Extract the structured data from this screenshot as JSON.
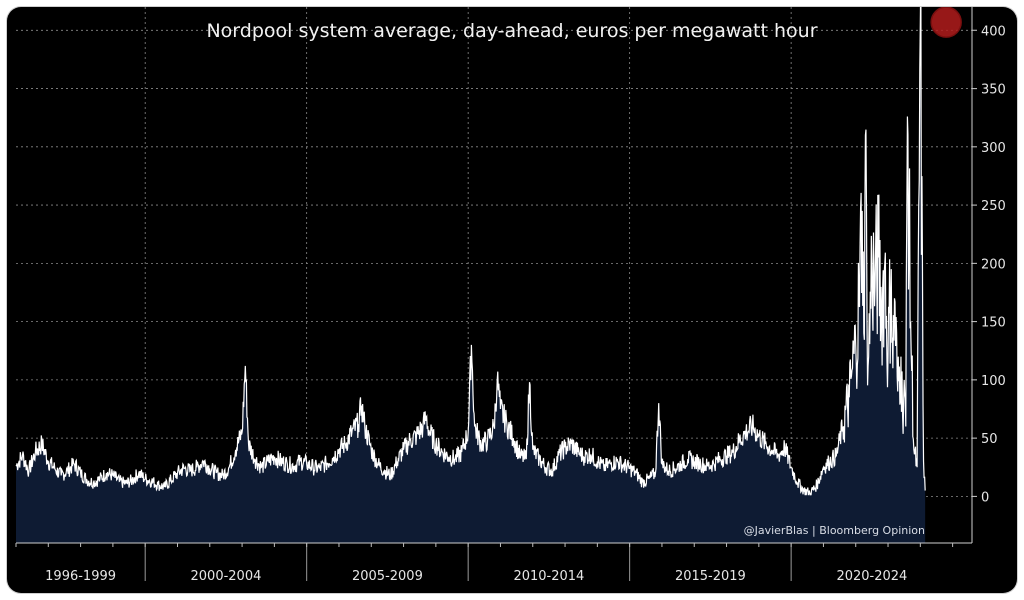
{
  "chart_data": {
    "type": "area",
    "title": "Nordpool system average, day-ahead, euros per megawatt hour",
    "ylabel": "",
    "xlabel": "",
    "ylim": [
      -40,
      420
    ],
    "xlim": [
      1996.0,
      2025.6
    ],
    "yticks": [
      0,
      50,
      100,
      150,
      200,
      250,
      300,
      350,
      400
    ],
    "xcategories": [
      {
        "label": "1996-1999",
        "start": 1996.0,
        "end": 2000.0
      },
      {
        "label": "2000-2004",
        "start": 2000.0,
        "end": 2005.0
      },
      {
        "label": "2005-2009",
        "start": 2005.0,
        "end": 2010.0
      },
      {
        "label": "2010-2014",
        "start": 2010.0,
        "end": 2015.0
      },
      {
        "label": "2015-2019",
        "start": 2015.0,
        "end": 2020.0
      },
      {
        "label": "2020-2024",
        "start": 2020.0,
        "end": 2025.0
      }
    ],
    "credit": "@JavierBlas | Bloomberg Opinion",
    "highlight": {
      "x": 2024.8,
      "y": 407,
      "color": "#b21c1c"
    },
    "colors": {
      "area": "#0e1b33",
      "line": "#ffffff",
      "grid": "#8a8a8a"
    },
    "series": [
      {
        "name": "Nordpool system average",
        "points": [
          [
            1996.0,
            26
          ],
          [
            1996.2,
            35
          ],
          [
            1996.4,
            22
          ],
          [
            1996.6,
            38
          ],
          [
            1996.8,
            45
          ],
          [
            1997.0,
            30
          ],
          [
            1997.2,
            24
          ],
          [
            1997.4,
            18
          ],
          [
            1997.6,
            22
          ],
          [
            1997.8,
            28
          ],
          [
            1998.0,
            20
          ],
          [
            1998.2,
            14
          ],
          [
            1998.4,
            12
          ],
          [
            1998.6,
            15
          ],
          [
            1998.8,
            20
          ],
          [
            1999.0,
            18
          ],
          [
            1999.2,
            13
          ],
          [
            1999.4,
            11
          ],
          [
            1999.6,
            14
          ],
          [
            1999.8,
            20
          ],
          [
            2000.0,
            15
          ],
          [
            2000.2,
            13
          ],
          [
            2000.4,
            10
          ],
          [
            2000.6,
            8
          ],
          [
            2000.8,
            14
          ],
          [
            2001.0,
            20
          ],
          [
            2001.2,
            24
          ],
          [
            2001.4,
            22
          ],
          [
            2001.6,
            25
          ],
          [
            2001.8,
            30
          ],
          [
            2002.0,
            24
          ],
          [
            2002.2,
            20
          ],
          [
            2002.4,
            18
          ],
          [
            2002.6,
            25
          ],
          [
            2002.8,
            40
          ],
          [
            2003.0,
            55
          ],
          [
            2003.1,
            112
          ],
          [
            2003.2,
            45
          ],
          [
            2003.4,
            32
          ],
          [
            2003.6,
            25
          ],
          [
            2003.8,
            30
          ],
          [
            2004.0,
            34
          ],
          [
            2004.2,
            30
          ],
          [
            2004.4,
            28
          ],
          [
            2004.6,
            26
          ],
          [
            2004.8,
            30
          ],
          [
            2005.0,
            28
          ],
          [
            2005.2,
            25
          ],
          [
            2005.4,
            24
          ],
          [
            2005.6,
            28
          ],
          [
            2005.8,
            33
          ],
          [
            2006.0,
            40
          ],
          [
            2006.2,
            45
          ],
          [
            2006.4,
            55
          ],
          [
            2006.6,
            62
          ],
          [
            2006.7,
            78
          ],
          [
            2006.8,
            60
          ],
          [
            2007.0,
            40
          ],
          [
            2007.2,
            28
          ],
          [
            2007.4,
            22
          ],
          [
            2007.6,
            18
          ],
          [
            2007.8,
            30
          ],
          [
            2008.0,
            40
          ],
          [
            2008.2,
            48
          ],
          [
            2008.4,
            52
          ],
          [
            2008.6,
            60
          ],
          [
            2008.7,
            68
          ],
          [
            2008.8,
            55
          ],
          [
            2009.0,
            45
          ],
          [
            2009.2,
            38
          ],
          [
            2009.4,
            34
          ],
          [
            2009.6,
            32
          ],
          [
            2009.8,
            38
          ],
          [
            2010.0,
            55
          ],
          [
            2010.1,
            130
          ],
          [
            2010.2,
            60
          ],
          [
            2010.4,
            45
          ],
          [
            2010.6,
            48
          ],
          [
            2010.8,
            60
          ],
          [
            2010.9,
            100
          ],
          [
            2011.0,
            75
          ],
          [
            2011.2,
            62
          ],
          [
            2011.4,
            50
          ],
          [
            2011.6,
            35
          ],
          [
            2011.8,
            32
          ],
          [
            2011.9,
            98
          ],
          [
            2012.0,
            40
          ],
          [
            2012.2,
            32
          ],
          [
            2012.4,
            25
          ],
          [
            2012.6,
            22
          ],
          [
            2012.8,
            35
          ],
          [
            2013.0,
            42
          ],
          [
            2013.2,
            45
          ],
          [
            2013.4,
            38
          ],
          [
            2013.6,
            34
          ],
          [
            2013.8,
            36
          ],
          [
            2014.0,
            30
          ],
          [
            2014.2,
            25
          ],
          [
            2014.4,
            28
          ],
          [
            2014.6,
            30
          ],
          [
            2014.8,
            27
          ],
          [
            2015.0,
            24
          ],
          [
            2015.2,
            20
          ],
          [
            2015.4,
            12
          ],
          [
            2015.6,
            15
          ],
          [
            2015.8,
            20
          ],
          [
            2015.9,
            80
          ],
          [
            2016.0,
            28
          ],
          [
            2016.2,
            22
          ],
          [
            2016.4,
            24
          ],
          [
            2016.6,
            28
          ],
          [
            2016.8,
            32
          ],
          [
            2017.0,
            30
          ],
          [
            2017.2,
            28
          ],
          [
            2017.4,
            26
          ],
          [
            2017.6,
            28
          ],
          [
            2017.8,
            32
          ],
          [
            2018.0,
            35
          ],
          [
            2018.2,
            38
          ],
          [
            2018.4,
            48
          ],
          [
            2018.6,
            55
          ],
          [
            2018.8,
            60
          ],
          [
            2019.0,
            52
          ],
          [
            2019.2,
            45
          ],
          [
            2019.4,
            40
          ],
          [
            2019.6,
            35
          ],
          [
            2019.8,
            42
          ],
          [
            2020.0,
            25
          ],
          [
            2020.2,
            12
          ],
          [
            2020.4,
            5
          ],
          [
            2020.6,
            3
          ],
          [
            2020.8,
            10
          ],
          [
            2021.0,
            25
          ],
          [
            2021.2,
            30
          ],
          [
            2021.4,
            35
          ],
          [
            2021.6,
            60
          ],
          [
            2021.8,
            85
          ],
          [
            2021.9,
            110
          ],
          [
            2022.0,
            130
          ],
          [
            2022.1,
            165
          ],
          [
            2022.2,
            245
          ],
          [
            2022.25,
            140
          ],
          [
            2022.3,
            310
          ],
          [
            2022.35,
            150
          ],
          [
            2022.4,
            120
          ],
          [
            2022.5,
            200
          ],
          [
            2022.6,
            180
          ],
          [
            2022.7,
            205
          ],
          [
            2022.8,
            160
          ],
          [
            2022.9,
            200
          ],
          [
            2023.0,
            120
          ],
          [
            2023.1,
            195
          ],
          [
            2023.15,
            110
          ],
          [
            2023.2,
            170
          ],
          [
            2023.3,
            90
          ],
          [
            2023.4,
            120
          ],
          [
            2023.45,
            70
          ],
          [
            2023.5,
            100
          ],
          [
            2023.55,
            60
          ],
          [
            2023.6,
            326
          ],
          [
            2023.7,
            150
          ],
          [
            2023.8,
            40
          ],
          [
            2023.9,
            25
          ],
          [
            2024.0,
            407
          ],
          [
            2024.1,
            30
          ],
          [
            2024.15,
            5
          ]
        ]
      }
    ]
  }
}
